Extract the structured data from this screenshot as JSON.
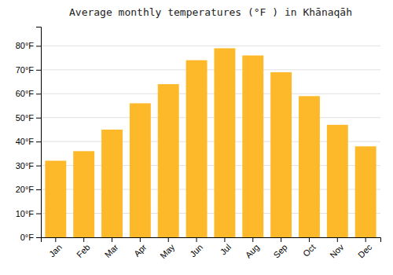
{
  "chart_data": {
    "type": "bar",
    "title": "Average monthly temperatures (°F ) in Khānaqāh",
    "categories": [
      "Jan",
      "Feb",
      "Mar",
      "Apr",
      "May",
      "Jun",
      "Jul",
      "Aug",
      "Sep",
      "Oct",
      "Nov",
      "Dec"
    ],
    "values": [
      32,
      36,
      45,
      56,
      64,
      74,
      79,
      76,
      69,
      59,
      47,
      38
    ],
    "color": "#FDB92A",
    "ylim": [
      0,
      88
    ],
    "yticks": [
      {
        "value": 0,
        "label": "0°F"
      },
      {
        "value": 10,
        "label": "10°F"
      },
      {
        "value": 20,
        "label": "20°F"
      },
      {
        "value": 30,
        "label": "30°F"
      },
      {
        "value": 40,
        "label": "40°F"
      },
      {
        "value": 50,
        "label": "50°F"
      },
      {
        "value": 60,
        "label": "60°F"
      },
      {
        "value": 70,
        "label": "70°F"
      },
      {
        "value": 80,
        "label": "80°F"
      }
    ],
    "grid": true
  }
}
